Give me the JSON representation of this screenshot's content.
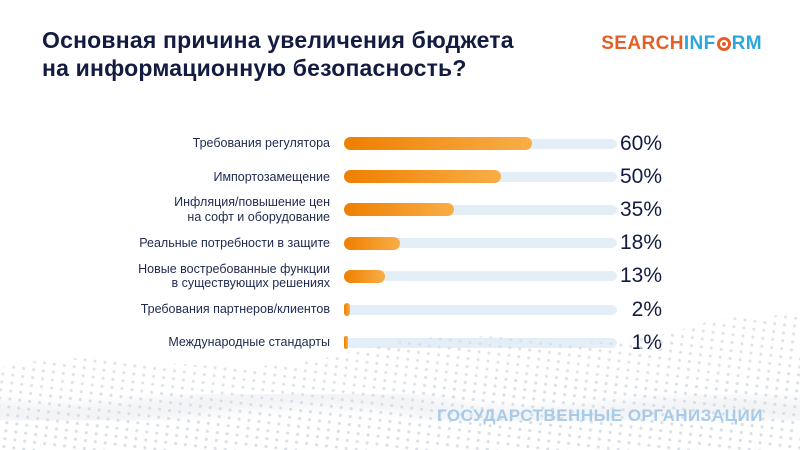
{
  "header": {
    "title": "Основная причина увеличения бюджета\nна информационную безопасность?",
    "logo": {
      "search": "SEARCH",
      "inf": "INF",
      "rm": "RM",
      "o_icon": "target-ring-icon"
    }
  },
  "chart_data": {
    "type": "bar",
    "orientation": "horizontal",
    "title": "Основная причина увеличения бюджета на информационную безопасность?",
    "categories": [
      "Требования регулятора",
      "Импортозамещение",
      "Инфляция/повышение цен\nна софт и оборудование",
      "Реальные потребности в защите",
      "Новые востребованные функции\nв существующих решениях",
      "Требования партнеров/клиентов",
      "Международные стандарты"
    ],
    "values": [
      60,
      50,
      35,
      18,
      13,
      2,
      1
    ],
    "value_labels": [
      "60%",
      "50%",
      "35%",
      "18%",
      "13%",
      "2%",
      "1%"
    ],
    "value_suffix": "%",
    "xlim": [
      0,
      87
    ],
    "grid": false,
    "legend": false
  },
  "footer": {
    "audience": "ГОСУДАРСТВЕННЫЕ ОРГАНИЗАЦИИ"
  },
  "colors": {
    "title_text": "#131C40",
    "label_text": "#1E2A4E",
    "value_text": "#131C40",
    "bar_start": "#EE7F00",
    "bar_end": "#F9AE47",
    "track": "#E4EEF7",
    "logo_orange": "#E65E27",
    "logo_blue": "#2BA7DE",
    "footer_text": "#A7CBE9",
    "dots": "#D7DDE5"
  }
}
